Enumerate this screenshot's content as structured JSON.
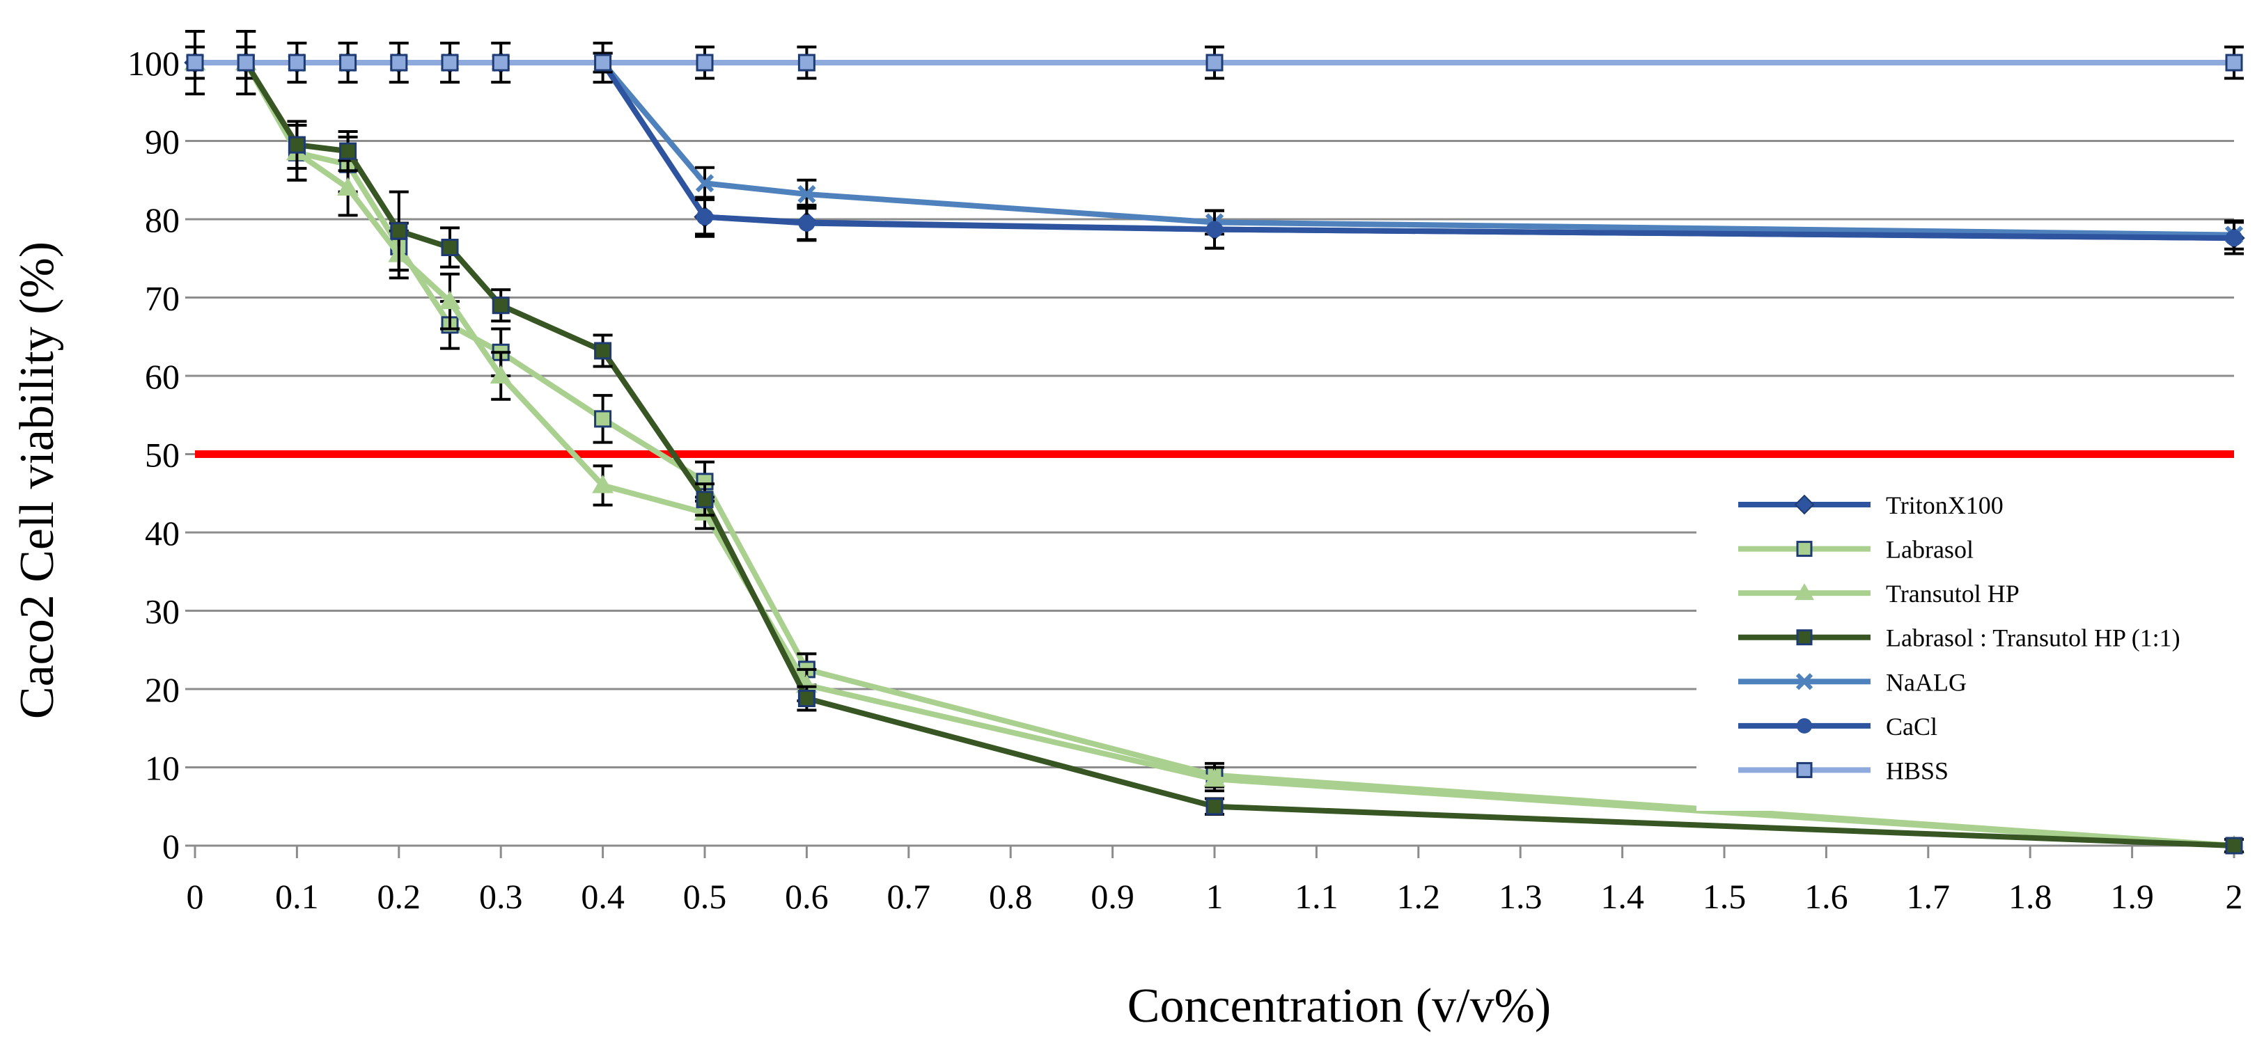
{
  "chart_data": {
    "type": "line",
    "title": "",
    "xlabel": "Concentration (v/v%)",
    "ylabel": "Caco2 Cell viability (%)",
    "ylim": [
      0,
      100
    ],
    "grid": true,
    "legend_position": "right",
    "x_ticks": [
      "0",
      "0.1",
      "0.2",
      "0.3",
      "0.4",
      "0.5",
      "0.6",
      "0.7",
      "0.8",
      "0.9",
      "1",
      "1.1",
      "1.2",
      "1.3",
      "1.4",
      "1.5",
      "1.6",
      "1.7",
      "1.8",
      "1.9",
      "2"
    ],
    "y_ticks": [
      "0",
      "10",
      "20",
      "30",
      "40",
      "50",
      "60",
      "70",
      "80",
      "90",
      "100"
    ],
    "threshold": {
      "value": 50,
      "color": "#ff0000"
    },
    "series": [
      {
        "name": "TritonX100",
        "color": "#2e54a0",
        "marker": "diamond",
        "x": [
          0,
          0.05,
          0.1,
          0.15,
          0.2,
          0.25,
          0.3,
          0.4,
          0.5,
          0.6,
          1,
          2
        ],
        "y": [
          100,
          100,
          100,
          100,
          100,
          100,
          100,
          100,
          80.3,
          79.6,
          78.7,
          77.6
        ],
        "err": [
          0,
          0,
          0,
          0,
          0,
          0,
          0,
          1.2,
          2.5,
          2.2,
          2.4,
          2.0
        ]
      },
      {
        "name": "Labrasol",
        "color": "#a9d08e",
        "marker": "square",
        "x": [
          0,
          0.05,
          0.1,
          0.15,
          0.2,
          0.25,
          0.3,
          0.4,
          0.5,
          0.6,
          1,
          2
        ],
        "y": [
          100,
          100,
          88.5,
          87,
          76.5,
          66.5,
          63,
          54.5,
          46.5,
          22.5,
          9,
          0
        ],
        "err": [
          2,
          2,
          3.5,
          3.5,
          3,
          3,
          3,
          3,
          2.5,
          2,
          1.5,
          0.8
        ]
      },
      {
        "name": "Transutol HP",
        "color": "#a9d08e",
        "marker": "triangle",
        "x": [
          0,
          0.05,
          0.1,
          0.15,
          0.2,
          0.25,
          0.3,
          0.4,
          0.5,
          0.6,
          1,
          2
        ],
        "y": [
          100,
          100,
          88.5,
          84,
          75.5,
          69.5,
          60,
          46,
          42.5,
          20.5,
          8.5,
          0
        ],
        "err": [
          2,
          2,
          3.5,
          3.5,
          3,
          3.5,
          3,
          2.5,
          2,
          2,
          1.5,
          0.8
        ]
      },
      {
        "name": "Labrasol : Transutol HP (1:1)",
        "color": "#375623",
        "marker": "square",
        "x": [
          0,
          0.05,
          0.1,
          0.15,
          0.2,
          0.25,
          0.3,
          0.4,
          0.5,
          0.6,
          1,
          2
        ],
        "y": [
          100,
          100,
          89.5,
          88.7,
          78.5,
          76.4,
          69,
          63.2,
          44.2,
          18.8,
          5,
          0
        ],
        "err": [
          4,
          4,
          3,
          2.5,
          5,
          2.5,
          2,
          2,
          2,
          1.5,
          1,
          0.8
        ]
      },
      {
        "name": "NaALG",
        "color": "#4f81bd",
        "marker": "x",
        "x": [
          0,
          0.05,
          0.1,
          0.15,
          0.2,
          0.25,
          0.3,
          0.4,
          0.5,
          0.6,
          1,
          2
        ],
        "y": [
          100,
          100,
          100,
          100,
          100,
          100,
          100,
          100,
          84.6,
          83.2,
          79.6,
          78
        ],
        "err": [
          0,
          0,
          0,
          0,
          0,
          0,
          0,
          1.2,
          2,
          1.8,
          1.5,
          1.8
        ]
      },
      {
        "name": "CaCl",
        "color": "#2e54a0",
        "marker": "circle",
        "x": [
          0,
          0.05,
          0.1,
          0.15,
          0.2,
          0.25,
          0.3,
          0.4,
          0.5,
          0.6,
          1,
          2
        ],
        "y": [
          100,
          100,
          100,
          100,
          100,
          100,
          100,
          100,
          80.3,
          79.5,
          78.7,
          77.6
        ],
        "err": [
          0,
          0,
          0,
          0,
          0,
          0,
          0,
          1.2,
          2.2,
          2.2,
          2.4,
          2.0
        ]
      },
      {
        "name": "HBSS",
        "color": "#8ea9db",
        "marker": "square",
        "x": [
          0,
          0.05,
          0.1,
          0.15,
          0.2,
          0.25,
          0.3,
          0.4,
          0.5,
          0.6,
          1,
          2
        ],
        "y": [
          100,
          100,
          100,
          100,
          100,
          100,
          100,
          100,
          100,
          100,
          100,
          100
        ],
        "err": [
          4,
          4,
          2.5,
          2.5,
          2.5,
          2.5,
          2.5,
          2.5,
          2,
          2,
          2,
          2
        ]
      }
    ]
  }
}
